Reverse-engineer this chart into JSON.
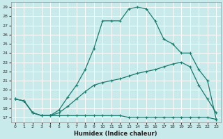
{
  "xlabel": "Humidex (Indice chaleur)",
  "background_color": "#c8eaea",
  "grid_color": "#ffffff",
  "line_color": "#1a7a6e",
  "xlim": [
    -0.5,
    23.5
  ],
  "ylim": [
    16.5,
    29.5
  ],
  "xticks": [
    0,
    1,
    2,
    3,
    4,
    5,
    6,
    7,
    8,
    9,
    10,
    11,
    12,
    13,
    14,
    15,
    16,
    17,
    18,
    19,
    20,
    21,
    22,
    23
  ],
  "yticks": [
    17,
    18,
    19,
    20,
    21,
    22,
    23,
    24,
    25,
    26,
    27,
    28,
    29
  ],
  "line1_x": [
    0,
    1,
    2,
    3,
    4,
    5,
    6,
    7,
    8,
    9,
    10,
    11,
    12,
    13,
    14,
    15,
    16,
    17,
    18,
    19,
    20,
    21,
    22,
    23
  ],
  "line1_y": [
    19.0,
    18.8,
    17.5,
    17.2,
    17.2,
    17.2,
    17.2,
    17.2,
    17.2,
    17.2,
    17.2,
    17.2,
    17.2,
    17.0,
    17.0,
    17.0,
    17.0,
    17.0,
    17.0,
    17.0,
    17.0,
    17.0,
    17.0,
    16.8
  ],
  "line2_x": [
    0,
    1,
    2,
    3,
    4,
    5,
    6,
    7,
    8,
    9,
    10,
    11,
    12,
    13,
    14,
    15,
    16,
    17,
    18,
    19,
    20,
    21,
    22,
    23
  ],
  "line2_y": [
    19.0,
    18.8,
    17.5,
    17.2,
    17.2,
    17.5,
    18.2,
    19.0,
    19.8,
    20.5,
    20.8,
    21.0,
    21.2,
    21.5,
    21.8,
    22.0,
    22.2,
    22.5,
    22.8,
    23.0,
    22.5,
    20.5,
    19.0,
    17.5
  ],
  "line3_x": [
    0,
    1,
    2,
    3,
    4,
    5,
    6,
    7,
    8,
    9,
    10,
    11,
    12,
    13,
    14,
    15,
    16,
    17,
    18,
    19,
    20,
    21,
    22,
    23
  ],
  "line3_y": [
    19.0,
    18.8,
    17.5,
    17.2,
    17.2,
    17.8,
    19.2,
    20.5,
    22.2,
    24.5,
    27.5,
    27.5,
    27.5,
    28.8,
    29.0,
    28.8,
    27.5,
    25.5,
    25.0,
    24.0,
    24.0,
    22.2,
    21.0,
    16.8
  ]
}
